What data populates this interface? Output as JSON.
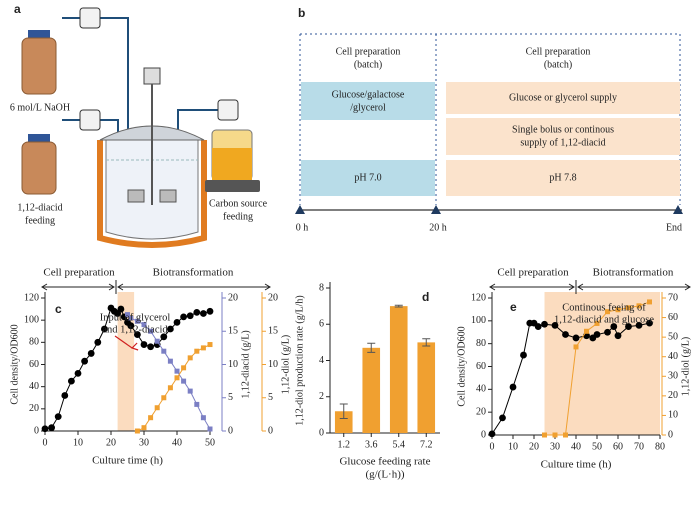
{
  "panel_a": {
    "label": "a",
    "naoh": "6 mol/L NaOH",
    "diacid": [
      "1,12-diacid",
      "feeding"
    ],
    "carbon": [
      "Carbon source",
      "feeding"
    ]
  },
  "panel_b": {
    "label": "b",
    "phase1": [
      "Cell preparation",
      "(batch)"
    ],
    "phase2": [
      "Cell preparation",
      "(batch)"
    ],
    "carbon1": [
      "Glucose/galactose",
      "/glycerol"
    ],
    "carbon2": [
      "Glucose or glycerol supply"
    ],
    "diacid": [
      "Single bolus or continous",
      "supply of 1,12-diacid"
    ],
    "ph1": "pH 7.0",
    "ph2": "pH 7.8",
    "times": [
      "0 h",
      "20 h",
      "End"
    ]
  },
  "chart_data": [
    {
      "type": "line",
      "label": "c",
      "phases": [
        "Cell preparation",
        "Biotransformation"
      ],
      "annotation": [
        "Input of glycerol",
        "and 1,12-diacid"
      ],
      "highlight": [
        22,
        27
      ],
      "xlabel": "Culture time (h)",
      "xlim": [
        0,
        50
      ],
      "xticks": [
        0,
        10,
        20,
        30,
        40,
        50
      ],
      "ylabel": "Cell density/OD600",
      "ylim": [
        0,
        120
      ],
      "yticks": [
        0,
        20,
        40,
        60,
        80,
        100,
        120
      ],
      "y2label": "1,12-diacid (g/L)",
      "y2lim": [
        0,
        20
      ],
      "y2ticks": [
        0,
        5,
        10,
        15,
        20
      ],
      "y3label": "1,12-diol (g/L)",
      "y3lim": [
        0,
        20
      ],
      "y3ticks": [
        0,
        5,
        10,
        15,
        20
      ],
      "series": [
        {
          "color": "#000000",
          "marker": "circle",
          "axis": "y",
          "x": [
            0,
            2,
            4,
            6,
            8,
            10,
            12,
            14,
            16,
            18,
            20,
            21,
            22,
            23,
            24,
            25,
            26,
            28,
            30,
            32,
            34,
            36,
            38,
            40,
            42,
            44,
            46,
            48,
            50
          ],
          "values": [
            2,
            3,
            13,
            32,
            45,
            52,
            63,
            70,
            80,
            92,
            111,
            108,
            106,
            110,
            103,
            98,
            95,
            87,
            78,
            76,
            78,
            85,
            92,
            98,
            103,
            104,
            107,
            106,
            108
          ]
        },
        {
          "color": "#7b7fc4",
          "marker": "square",
          "axis": "y2",
          "x": [
            25,
            26,
            28,
            30,
            32,
            34,
            36,
            38,
            40,
            42,
            44,
            46,
            48,
            50
          ],
          "values": [
            17.5,
            17,
            16.5,
            16,
            15,
            13.5,
            12,
            10.5,
            9,
            7.5,
            6,
            4,
            2,
            0.3
          ]
        },
        {
          "color": "#f0a030",
          "marker": "square",
          "axis": "y3",
          "x": [
            28,
            30,
            32,
            34,
            36,
            38,
            40,
            42,
            44,
            46,
            48,
            50
          ],
          "values": [
            0,
            0.5,
            2,
            3.5,
            5,
            6.5,
            8,
            9.5,
            11,
            12,
            12.5,
            13
          ]
        }
      ]
    },
    {
      "type": "bar",
      "label": "d",
      "color": "#f0a030",
      "categories": [
        "1.2",
        "3.6",
        "5.4",
        "7.2"
      ],
      "values": [
        1.2,
        4.7,
        7.0,
        5.0
      ],
      "errors": [
        0.4,
        0.25,
        0.05,
        0.2
      ],
      "xlabel": [
        "Glucose feeding rate",
        "(g/(L·h))"
      ],
      "ylabel": "1,12-diol production rate (g/L/h)",
      "ylim": [
        0,
        8
      ],
      "yticks": [
        0,
        2,
        4,
        6,
        8
      ]
    },
    {
      "type": "line",
      "label": "e",
      "phases": [
        "Cell preparation",
        "Biotransformation"
      ],
      "annotation": [
        "Continous feeing of",
        "1,12-diacid and glucose"
      ],
      "highlight": [
        25,
        80
      ],
      "xlabel": "Culture time (h)",
      "xlim": [
        0,
        80
      ],
      "xticks": [
        0,
        10,
        20,
        30,
        40,
        50,
        60,
        70,
        80
      ],
      "ylabel": "Cell density/OD600",
      "ylim": [
        0,
        120
      ],
      "yticks": [
        0,
        20,
        40,
        60,
        80,
        100,
        120
      ],
      "y2label": "1,12-diol (g/L)",
      "y2lim": [
        0,
        70
      ],
      "y2ticks": [
        0,
        10,
        20,
        30,
        40,
        50,
        60,
        70
      ],
      "series": [
        {
          "color": "#000000",
          "marker": "circle",
          "axis": "y",
          "x": [
            0,
            5,
            10,
            15,
            18,
            20,
            22,
            25,
            30,
            35,
            40,
            45,
            48,
            50,
            55,
            58,
            60,
            65,
            70,
            75
          ],
          "values": [
            1,
            15,
            42,
            70,
            98,
            98,
            95,
            97,
            96,
            88,
            85,
            87,
            85,
            88,
            90,
            95,
            87,
            95,
            96,
            98
          ]
        },
        {
          "color": "#f0a030",
          "marker": "square",
          "axis": "y2",
          "x": [
            25,
            30,
            35,
            40,
            45,
            50,
            55,
            60,
            65,
            70,
            75
          ],
          "values": [
            0,
            0,
            0,
            45,
            53,
            57,
            63,
            64,
            65,
            66,
            68
          ]
        }
      ]
    }
  ]
}
